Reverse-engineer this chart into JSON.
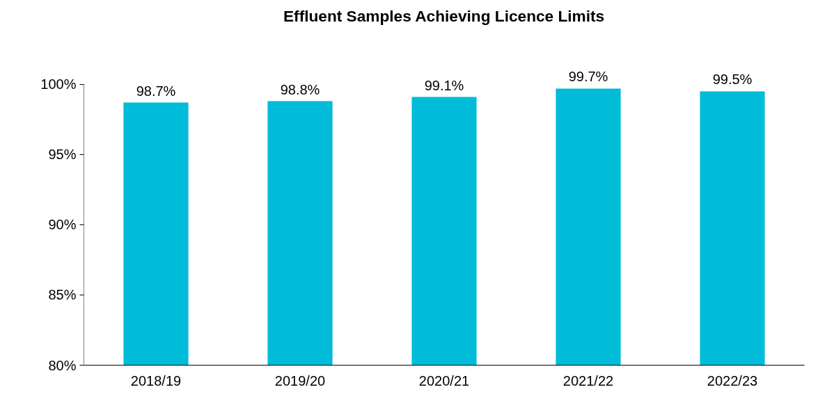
{
  "chart_data": {
    "type": "bar",
    "title": "Effluent Samples Achieving Licence Limits",
    "categories": [
      "2018/19",
      "2019/20",
      "2020/21",
      "2021/22",
      "2022/23"
    ],
    "values": [
      98.7,
      98.8,
      99.1,
      99.7,
      99.5
    ],
    "value_labels": [
      "98.7%",
      "98.8%",
      "99.1%",
      "99.7%",
      "99.5%"
    ],
    "color": "#00bcd9",
    "ylim": [
      80,
      100
    ],
    "yticks": [
      {
        "value": 80,
        "label": "80%"
      },
      {
        "value": 85,
        "label": "85%"
      },
      {
        "value": 90,
        "label": "90%"
      },
      {
        "value": 95,
        "label": "95%"
      },
      {
        "value": 100,
        "label": "100%"
      }
    ],
    "grid": false
  }
}
